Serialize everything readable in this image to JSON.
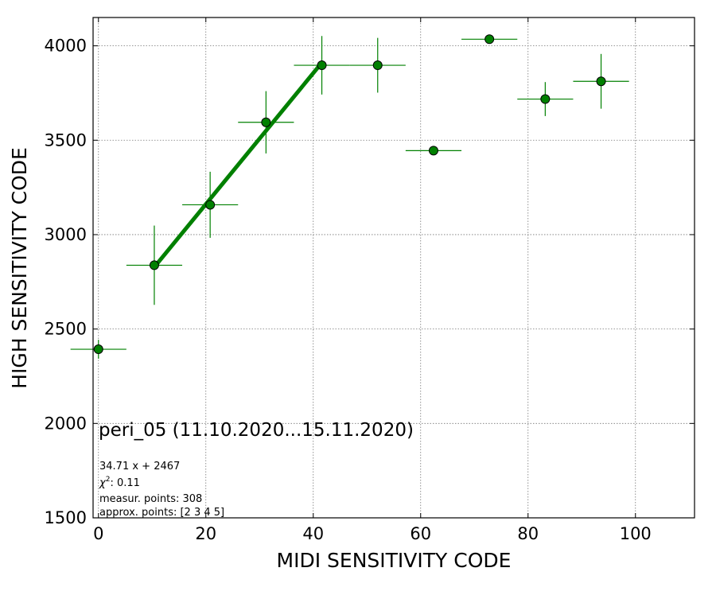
{
  "chart_data": {
    "type": "scatter",
    "xlabel": "MIDI SENSITIVITY CODE",
    "ylabel": "HIGH SENSITIVITY CODE",
    "xlim": [
      -1,
      111
    ],
    "ylim": [
      1500,
      4150
    ],
    "xticks": [
      0,
      20,
      40,
      60,
      80,
      100
    ],
    "yticks": [
      1500,
      2000,
      2500,
      3000,
      3500,
      4000
    ],
    "grid": true,
    "colors": {
      "marker": "#008000",
      "errorbar": "#008000",
      "fit": "#008000"
    },
    "series": [
      {
        "points": [
          {
            "x": 0.0,
            "y": 2393,
            "xerr": 5.2,
            "yerr": 50
          },
          {
            "x": 10.4,
            "y": 2838,
            "xerr": 5.2,
            "yerr": 210
          },
          {
            "x": 20.8,
            "y": 3158,
            "xerr": 5.2,
            "yerr": 175
          },
          {
            "x": 31.2,
            "y": 3595,
            "xerr": 5.2,
            "yerr": 165
          },
          {
            "x": 41.6,
            "y": 3897,
            "xerr": 5.2,
            "yerr": 155
          },
          {
            "x": 52.0,
            "y": 3897,
            "xerr": 5.2,
            "yerr": 145
          },
          {
            "x": 62.4,
            "y": 3445,
            "xerr": 5.2,
            "yerr": 0
          },
          {
            "x": 72.8,
            "y": 4035,
            "xerr": 5.2,
            "yerr": 20
          },
          {
            "x": 83.2,
            "y": 3718,
            "xerr": 5.2,
            "yerr": 90
          },
          {
            "x": 93.6,
            "y": 3812,
            "xerr": 5.2,
            "yerr": 145
          }
        ]
      }
    ],
    "fit": {
      "slope": 34.71,
      "intercept": 2467,
      "x_range": [
        10.4,
        41.6
      ]
    },
    "annotations": {
      "title": "peri_05 (11.10.2020...15.11.2020)",
      "equation": "34.71 x + 2467",
      "chi2_label": "χ",
      "chi2_value": ": 0.11",
      "measur_points": "measur. points: 308",
      "approx_points": "approx. points: [2 3 4 5]"
    }
  }
}
